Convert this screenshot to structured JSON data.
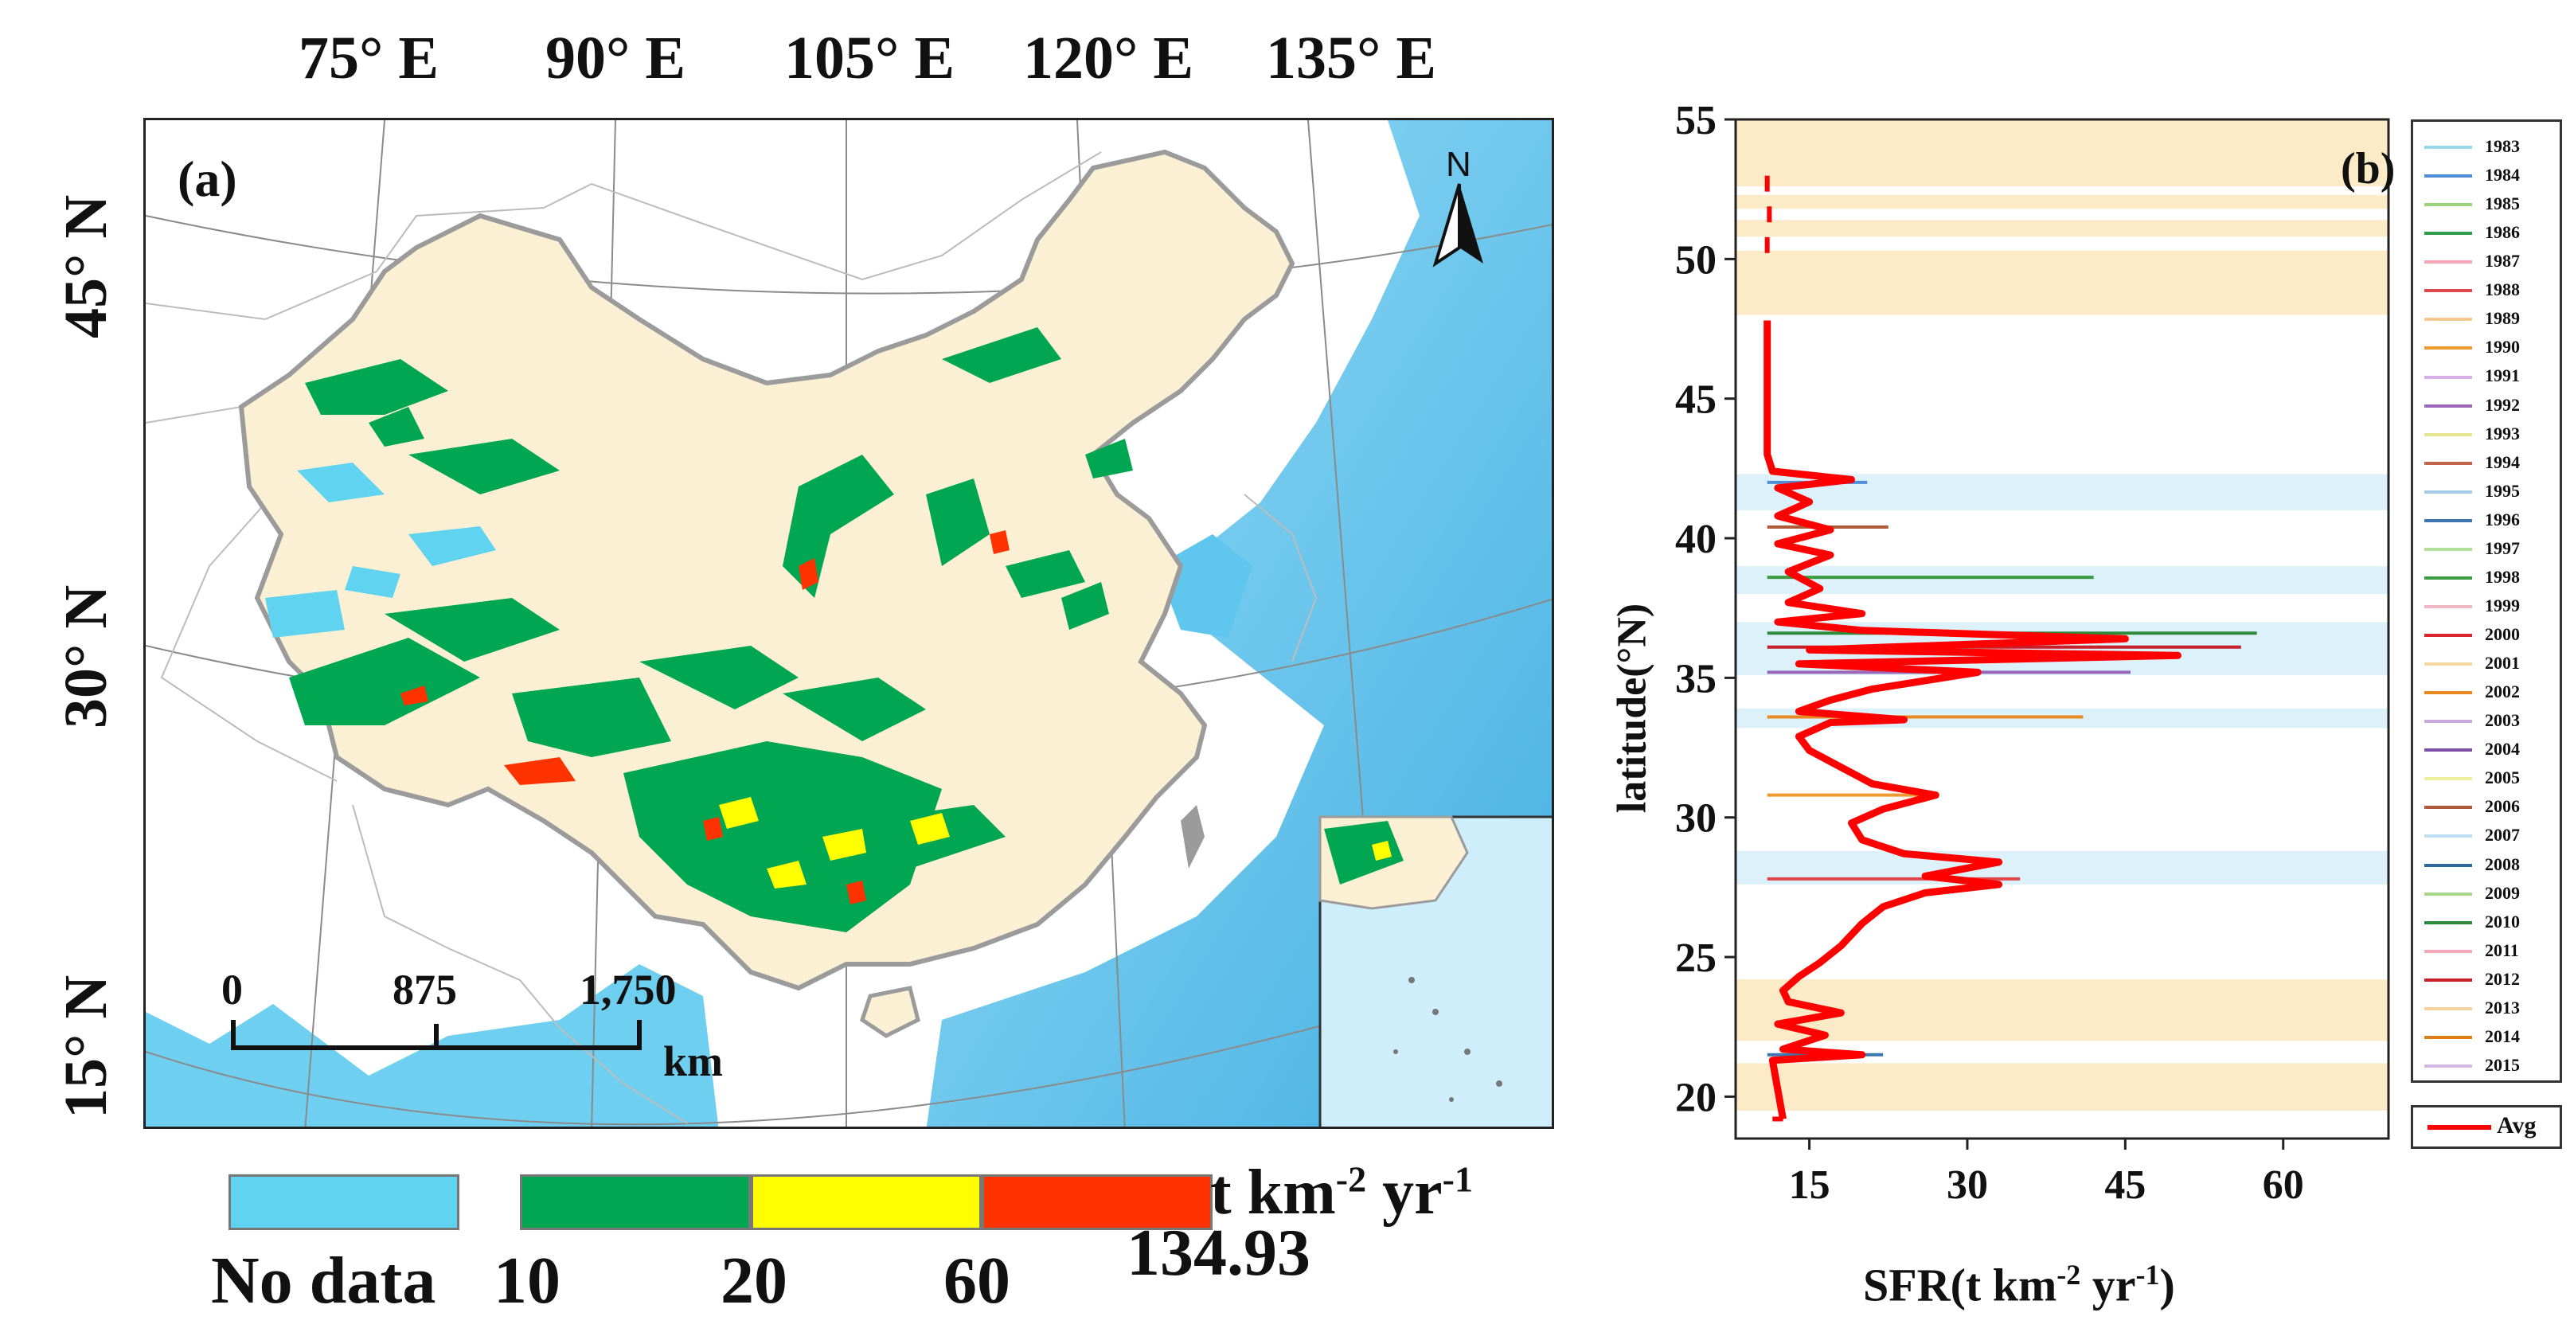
{
  "panel_a": {
    "tag": "(a)",
    "longitude_labels": [
      "75° E",
      "90° E",
      "105° E",
      "120° E",
      "135° E"
    ],
    "latitude_labels": [
      "45° N",
      "30° N",
      "15° N"
    ],
    "north_arrow": "N",
    "scale_bar": {
      "ticks": [
        "0",
        "875",
        "1,750"
      ],
      "unit": "km"
    },
    "legend": {
      "no_data_label": "No data",
      "unit_label": "t km-2 yr-1",
      "unit_base": "t km",
      "unit_exp1": "-2",
      "unit_mid": " yr",
      "unit_exp2": "-1",
      "breaks": [
        "10",
        "20",
        "60",
        "134.93"
      ],
      "colors": {
        "no_data": "#5fd3f0",
        "low": "#00a651",
        "mid": "#ffff00",
        "high": "#ff3300"
      }
    }
  },
  "panel_b": {
    "tag": "(b)",
    "colors": {
      "avg": "#ff0000",
      "band_tan": "#fdebc8",
      "band_blue": "#dcf1fa"
    },
    "chart_data": {
      "type": "line",
      "orientation": "horizontal-profile",
      "title": "",
      "xlabel": "SFR(t km-2 yr-1)",
      "xlabel_base": "SFR(t km",
      "xlabel_exp1": "-2",
      "xlabel_mid": " yr",
      "xlabel_exp2": "-1",
      "xlabel_tail": ")",
      "ylabel": "latitude(°N)",
      "xlim": [
        8,
        70
      ],
      "ylim": [
        18.5,
        55
      ],
      "xticks": [
        "15",
        "30",
        "45",
        "60"
      ],
      "yticks": [
        "20",
        "25",
        "30",
        "35",
        "40",
        "45",
        "50",
        "55"
      ],
      "tan_bands": [
        [
          19.5,
          21.2
        ],
        [
          22.0,
          24.2
        ],
        [
          48.0,
          50.3
        ],
        [
          50.8,
          51.4
        ],
        [
          51.8,
          52.3
        ],
        [
          52.6,
          55.0
        ]
      ],
      "blue_bands": [
        [
          27.6,
          28.8
        ],
        [
          33.2,
          33.9
        ],
        [
          35.1,
          37.0
        ],
        [
          38.0,
          39.0
        ],
        [
          41.0,
          42.3
        ]
      ],
      "legend_years": [
        "1983",
        "1984",
        "1985",
        "1986",
        "1987",
        "1988",
        "1989",
        "1990",
        "1991",
        "1992",
        "1993",
        "1994",
        "1995",
        "1996",
        "1997",
        "1998",
        "1999",
        "2000",
        "2001",
        "2002",
        "2003",
        "2004",
        "2005",
        "2006",
        "2007",
        "2008",
        "2009",
        "2010",
        "2011",
        "2012",
        "2013",
        "2014",
        "2015"
      ],
      "year_colors": [
        "#9ad8f0",
        "#4f8fd8",
        "#9bd37a",
        "#2e9d4e",
        "#f7a6b8",
        "#e0474c",
        "#f8c98f",
        "#ef9a2e",
        "#d6b0e6",
        "#9a66b8",
        "#e6e691",
        "#c0654a",
        "#a6cbe8",
        "#3c77b0",
        "#b3e09a",
        "#3a9b40",
        "#f1b8c6",
        "#d9252b",
        "#f6d79e",
        "#e88a1f",
        "#cba8de",
        "#7e4fa6",
        "#f0f09c",
        "#b05a3c",
        "#bfe0f2",
        "#2c6a9e",
        "#a8d68a",
        "#2d8a3a",
        "#f2a8b6",
        "#c8202a",
        "#f5d3a0",
        "#e07c18",
        "#d2b8e2"
      ],
      "avg_label": "Avg",
      "series": [
        {
          "name": "Avg",
          "points": [
            [
              11.5,
              19.2
            ],
            [
              12.5,
              19.2
            ],
            [
              11.5,
              21.3
            ],
            [
              20.0,
              21.5
            ],
            [
              12.5,
              21.7
            ],
            [
              16.5,
              22.2
            ],
            [
              12.0,
              22.6
            ],
            [
              18.0,
              23.0
            ],
            [
              13.0,
              23.4
            ],
            [
              12.5,
              23.8
            ],
            [
              14.0,
              24.3
            ],
            [
              16.0,
              24.8
            ],
            [
              18.0,
              25.4
            ],
            [
              20.0,
              26.2
            ],
            [
              22.0,
              26.8
            ],
            [
              26.0,
              27.3
            ],
            [
              33.0,
              27.6
            ],
            [
              26.0,
              27.9
            ],
            [
              33.0,
              28.4
            ],
            [
              24.0,
              28.7
            ],
            [
              20.0,
              29.2
            ],
            [
              19.0,
              29.8
            ],
            [
              22.0,
              30.3
            ],
            [
              27.0,
              30.8
            ],
            [
              21.0,
              31.2
            ],
            [
              18.0,
              31.8
            ],
            [
              15.0,
              32.4
            ],
            [
              14.0,
              32.9
            ],
            [
              17.0,
              33.4
            ],
            [
              24.0,
              33.5
            ],
            [
              14.0,
              33.8
            ],
            [
              17.0,
              34.2
            ],
            [
              21.0,
              34.6
            ],
            [
              31.0,
              35.2
            ],
            [
              14.0,
              35.5
            ],
            [
              50.0,
              35.8
            ],
            [
              15.0,
              36.0
            ],
            [
              45.0,
              36.4
            ],
            [
              20.0,
              36.7
            ],
            [
              12.0,
              37.0
            ],
            [
              20.0,
              37.3
            ],
            [
              13.0,
              37.7
            ],
            [
              16.0,
              38.2
            ],
            [
              13.0,
              38.8
            ],
            [
              17.0,
              39.4
            ],
            [
              12.0,
              39.8
            ],
            [
              17.0,
              40.3
            ],
            [
              12.0,
              40.8
            ],
            [
              15.0,
              41.3
            ],
            [
              12.0,
              41.8
            ],
            [
              19.0,
              42.1
            ],
            [
              11.5,
              42.4
            ],
            [
              11.0,
              43.0
            ],
            [
              11.0,
              45.0
            ],
            [
              11.0,
              47.8
            ]
          ]
        }
      ],
      "red_isolated_points": [
        [
          11.0,
          50.5
        ],
        [
          11.2,
          51.6
        ],
        [
          11.0,
          52.7
        ]
      ],
      "year_spikes": [
        {
          "year": "2010",
          "x": 57.5,
          "y": 36.6
        },
        {
          "year": "2012",
          "x": 56.0,
          "y": 36.1
        },
        {
          "year": "1998",
          "x": 42.0,
          "y": 38.6
        },
        {
          "year": "1992",
          "x": 45.5,
          "y": 35.2
        },
        {
          "year": "2002",
          "x": 41.0,
          "y": 33.6
        },
        {
          "year": "1988",
          "x": 35.0,
          "y": 27.8
        },
        {
          "year": "1990",
          "x": 26.0,
          "y": 30.8
        },
        {
          "year": "1996",
          "x": 22.0,
          "y": 21.5
        },
        {
          "year": "2006",
          "x": 22.5,
          "y": 40.4
        },
        {
          "year": "1984",
          "x": 20.5,
          "y": 42.0
        }
      ]
    }
  }
}
